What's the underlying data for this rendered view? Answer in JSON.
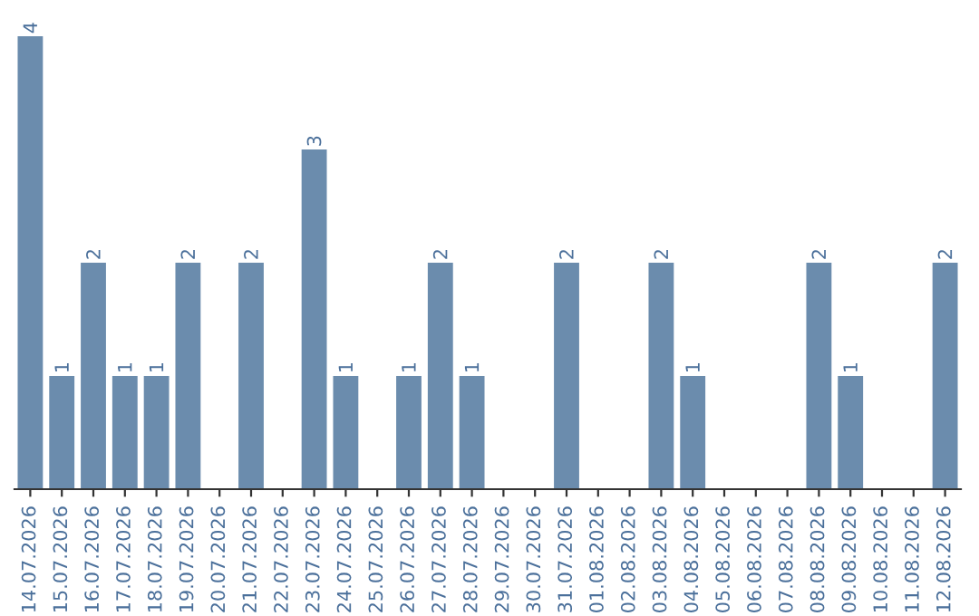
{
  "chart_data": {
    "type": "bar",
    "categories": [
      "14.07.2026",
      "15.07.2026",
      "16.07.2026",
      "17.07.2026",
      "18.07.2026",
      "19.07.2026",
      "20.07.2026",
      "21.07.2026",
      "22.07.2026",
      "23.07.2026",
      "24.07.2026",
      "25.07.2026",
      "26.07.2026",
      "27.07.2026",
      "28.07.2026",
      "29.07.2026",
      "30.07.2026",
      "31.07.2026",
      "01.08.2026",
      "02.08.2026",
      "03.08.2026",
      "04.08.2026",
      "05.08.2026",
      "06.08.2026",
      "07.08.2026",
      "08.08.2026",
      "09.08.2026",
      "10.08.2026",
      "11.08.2026",
      "12.08.2026"
    ],
    "values": [
      4,
      1,
      2,
      1,
      1,
      2,
      0,
      2,
      0,
      3,
      1,
      0,
      1,
      2,
      1,
      0,
      0,
      2,
      0,
      0,
      2,
      1,
      0,
      0,
      0,
      2,
      1,
      0,
      0,
      2
    ],
    "value_labels": [
      "4",
      "1",
      "2",
      "1",
      "1",
      "2",
      null,
      "2",
      null,
      "3",
      "1",
      null,
      "1",
      "2",
      "1",
      null,
      null,
      "2",
      null,
      null,
      "2",
      "1",
      null,
      null,
      null,
      "2",
      "1",
      null,
      null,
      "2"
    ],
    "color": "#6b8cad",
    "ylim": [
      0,
      4
    ],
    "tick_labels": "x",
    "grid": false
  }
}
